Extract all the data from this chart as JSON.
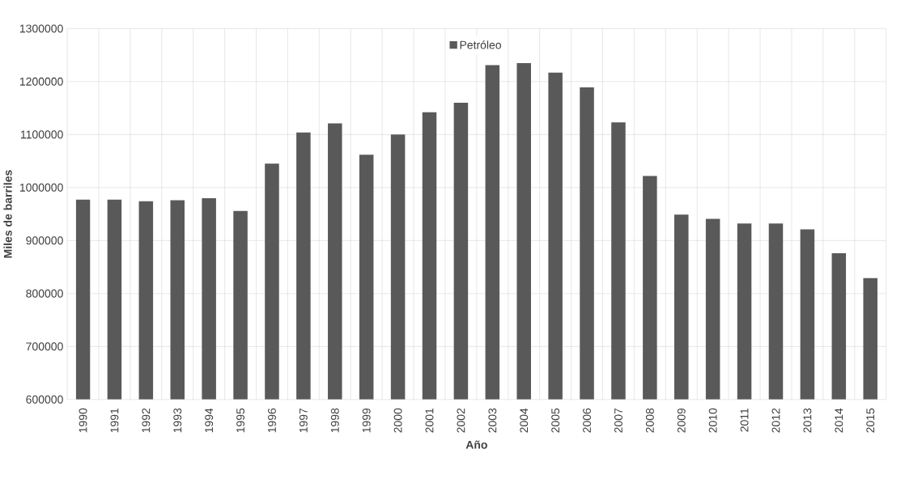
{
  "chart_data": {
    "type": "bar",
    "xlabel": "Año",
    "ylabel": "Miles de barriles",
    "categories": [
      "1990",
      "1991",
      "1992",
      "1993",
      "1994",
      "1995",
      "1996",
      "1997",
      "1998",
      "1999",
      "2000",
      "2001",
      "2002",
      "2003",
      "2004",
      "2005",
      "2006",
      "2007",
      "2008",
      "2009",
      "2010",
      "2011",
      "2012",
      "2013",
      "2014",
      "2015"
    ],
    "series": [
      {
        "name": "Petróleo",
        "color": "#595959",
        "values": [
          977000,
          977000,
          974000,
          976000,
          980000,
          956000,
          1045000,
          1104000,
          1121000,
          1062000,
          1100000,
          1142000,
          1160000,
          1231000,
          1235000,
          1217000,
          1189000,
          1123000,
          1022000,
          949000,
          941000,
          932000,
          932000,
          921000,
          876000,
          829000
        ]
      }
    ],
    "ylim": [
      600000,
      1300000
    ],
    "yticks": [
      600000,
      700000,
      800000,
      900000,
      1000000,
      1100000,
      1200000,
      1300000
    ],
    "grid": true,
    "legend": "top"
  }
}
